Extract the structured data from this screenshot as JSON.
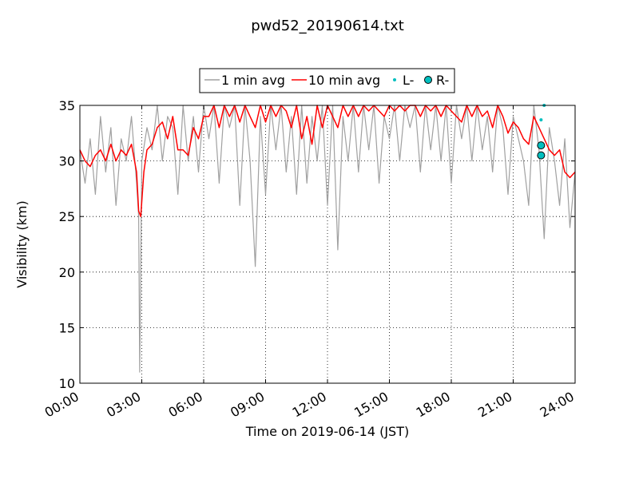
{
  "chart_data": {
    "type": "line",
    "title": "pwd52_20190614.txt",
    "xlabel": "Time on 2019-06-14 (JST)",
    "ylabel": "Visibility (km)",
    "xlim": [
      "00:00",
      "24:00"
    ],
    "ylim": [
      10,
      35
    ],
    "grid": true,
    "grid_style": "dotted",
    "legend_placement": "top-center",
    "x_ticks": [
      "00:00",
      "03:00",
      "06:00",
      "09:00",
      "12:00",
      "15:00",
      "18:00",
      "21:00",
      "24:00"
    ],
    "y_ticks": [
      "10",
      "15",
      "20",
      "25",
      "30",
      "35"
    ],
    "series": [
      {
        "name": "1 min avg",
        "color": "#a0a0a0",
        "style": "line",
        "x_hours": [
          0.0,
          0.25,
          0.5,
          0.75,
          1.0,
          1.25,
          1.5,
          1.75,
          2.0,
          2.25,
          2.5,
          2.75,
          2.85,
          2.9,
          3.0,
          3.25,
          3.5,
          3.75,
          4.0,
          4.25,
          4.5,
          4.75,
          5.0,
          5.25,
          5.5,
          5.75,
          6.0,
          6.25,
          6.5,
          6.75,
          7.0,
          7.25,
          7.5,
          7.75,
          8.0,
          8.25,
          8.5,
          8.75,
          9.0,
          9.25,
          9.5,
          9.75,
          10.0,
          10.25,
          10.5,
          10.75,
          11.0,
          11.25,
          11.5,
          11.75,
          12.0,
          12.25,
          12.5,
          12.75,
          13.0,
          13.25,
          13.5,
          13.75,
          14.0,
          14.25,
          14.5,
          14.75,
          15.0,
          15.25,
          15.5,
          15.75,
          16.0,
          16.25,
          16.5,
          16.75,
          17.0,
          17.25,
          17.5,
          17.75,
          18.0,
          18.25,
          18.5,
          18.75,
          19.0,
          19.25,
          19.5,
          19.75,
          20.0,
          20.25,
          20.5,
          20.75,
          21.0,
          21.25,
          21.5,
          21.75,
          22.0,
          22.25,
          22.5,
          22.75,
          23.0,
          23.25,
          23.5,
          23.75,
          24.0
        ],
        "values": [
          31,
          28,
          32,
          27,
          34,
          29,
          33,
          26,
          32,
          30,
          34,
          28,
          25,
          11,
          30,
          33,
          31,
          35,
          30,
          34,
          33,
          27,
          35,
          30,
          34,
          29,
          35,
          32,
          35,
          28,
          35,
          33,
          35,
          26,
          35,
          30,
          20.5,
          34,
          27,
          35,
          31,
          35,
          29,
          34,
          27,
          35,
          28,
          34,
          30,
          35,
          26,
          35,
          22,
          34,
          30,
          35,
          29,
          35,
          31,
          35,
          28,
          34,
          32,
          35,
          30,
          35,
          33,
          35,
          29,
          35,
          31,
          35,
          30,
          35,
          28,
          35,
          32,
          35,
          30,
          35,
          31,
          34,
          29,
          35,
          33,
          27,
          34,
          32,
          30,
          26,
          35,
          31,
          23,
          33,
          30,
          26,
          32,
          24,
          29
        ]
      },
      {
        "name": "10 min avg",
        "color": "#ff0000",
        "style": "line",
        "x_hours": [
          0.0,
          0.25,
          0.5,
          0.75,
          1.0,
          1.25,
          1.5,
          1.75,
          2.0,
          2.25,
          2.5,
          2.75,
          2.85,
          2.95,
          3.1,
          3.25,
          3.5,
          3.75,
          4.0,
          4.25,
          4.5,
          4.75,
          5.0,
          5.25,
          5.5,
          5.75,
          6.0,
          6.25,
          6.5,
          6.75,
          7.0,
          7.25,
          7.5,
          7.75,
          8.0,
          8.25,
          8.5,
          8.75,
          9.0,
          9.25,
          9.5,
          9.75,
          10.0,
          10.25,
          10.5,
          10.75,
          11.0,
          11.25,
          11.5,
          11.75,
          12.0,
          12.25,
          12.5,
          12.75,
          13.0,
          13.25,
          13.5,
          13.75,
          14.0,
          14.25,
          14.5,
          14.75,
          15.0,
          15.25,
          15.5,
          15.75,
          16.0,
          16.25,
          16.5,
          16.75,
          17.0,
          17.25,
          17.5,
          17.75,
          18.0,
          18.25,
          18.5,
          18.75,
          19.0,
          19.25,
          19.5,
          19.75,
          20.0,
          20.25,
          20.5,
          20.75,
          21.0,
          21.25,
          21.5,
          21.75,
          22.0,
          22.25,
          22.5,
          22.75,
          23.0,
          23.25,
          23.5,
          23.75,
          24.0
        ],
        "values": [
          31,
          30,
          29.5,
          30.5,
          31,
          30,
          31.5,
          30,
          31,
          30.5,
          31.5,
          29,
          25.5,
          25,
          29,
          31,
          31.5,
          33,
          33.5,
          32,
          34,
          31,
          31,
          30.5,
          33,
          32,
          34,
          34,
          35,
          33,
          35,
          34,
          35,
          33.5,
          35,
          34,
          33,
          35,
          33.5,
          35,
          34,
          35,
          34.5,
          33,
          35,
          32,
          34,
          31.5,
          35,
          33,
          35,
          34,
          33,
          35,
          34,
          35,
          34,
          35,
          34.5,
          35,
          34.5,
          34,
          35,
          34.5,
          35,
          34.5,
          35,
          35,
          34,
          35,
          34.5,
          35,
          34,
          35,
          34.5,
          34,
          33.5,
          35,
          34,
          35,
          34,
          34.5,
          33,
          35,
          34,
          32.5,
          33.5,
          33,
          32,
          31.5,
          34,
          33,
          32,
          31,
          30.5,
          31,
          29,
          28.5,
          29
        ]
      },
      {
        "name": "L-",
        "color": "#00bfbf",
        "style": "small-dot",
        "x_hours": [
          22.35,
          22.5
        ],
        "values": [
          33.7,
          35
        ]
      },
      {
        "name": "R-",
        "color": "#00bfbf",
        "style": "circle",
        "x_hours": [
          22.35,
          22.35
        ],
        "values": [
          31.4,
          30.5
        ]
      }
    ]
  }
}
